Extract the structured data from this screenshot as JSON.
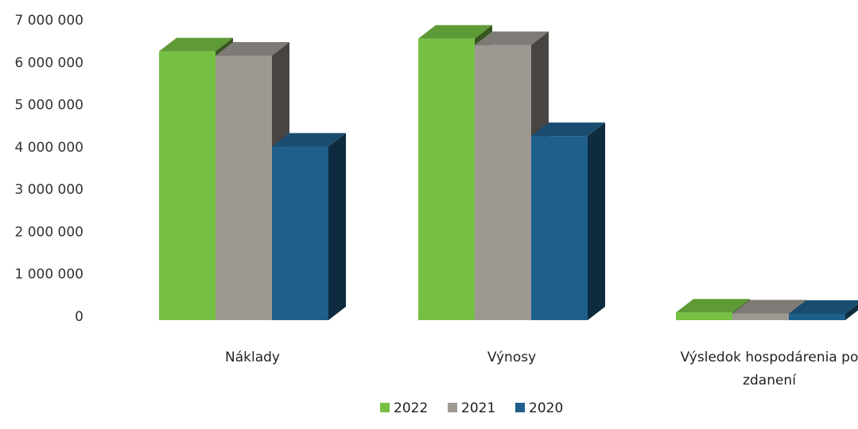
{
  "chart_data": {
    "type": "bar",
    "title": "",
    "xlabel": "",
    "ylabel": "",
    "categories": [
      [
        "Náklady"
      ],
      [
        "Výnosy"
      ],
      [
        "Výsledok hospodárenia po",
        "zdanení"
      ]
    ],
    "series": [
      {
        "name": "2022",
        "color": "#76c043",
        "values": [
          6350000,
          6650000,
          180000
        ]
      },
      {
        "name": "2021",
        "color": "#9e9893",
        "values": [
          6250000,
          6500000,
          160000
        ]
      },
      {
        "name": "2020",
        "color": "#1f5f8b",
        "values": [
          4100000,
          4350000,
          150000
        ]
      }
    ],
    "ylim": [
      0,
      7000000
    ],
    "yticks": [
      "0",
      "1 000 000",
      "2 000 000",
      "3 000 000",
      "4 000 000",
      "5 000 000",
      "6 000 000",
      "7 000 000"
    ],
    "grid": false,
    "legend_position": "bottom",
    "style": "3d-clustered-column"
  }
}
